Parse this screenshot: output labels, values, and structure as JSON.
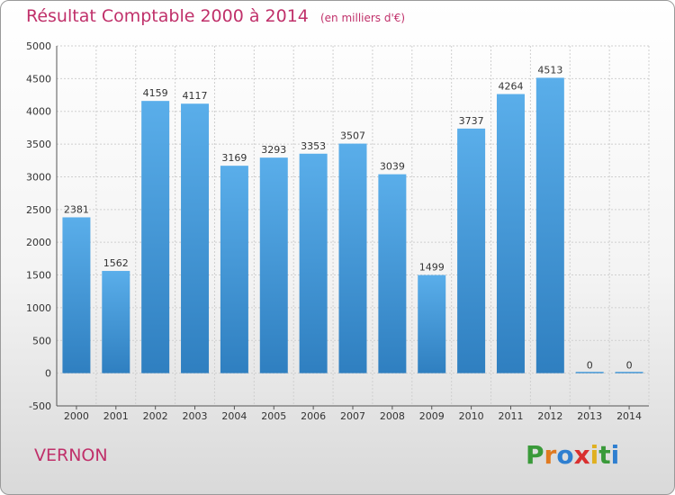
{
  "title": "Résultat Comptable 2000 à 2014",
  "subtitle": "(en milliers d'€)",
  "city": "VERNON",
  "brand": {
    "letters": [
      "P",
      "r",
      "o",
      "x",
      "i",
      "t",
      "i"
    ],
    "colors": [
      "#3a9a3a",
      "#e07a20",
      "#2f7fd0",
      "#d93030",
      "#e0b020",
      "#3a9a3a",
      "#2f7fd0"
    ]
  },
  "colors": {
    "bar": "#4aa0e0",
    "title": "#c0306a"
  },
  "chart_data": {
    "type": "bar",
    "title": "Résultat Comptable 2000 à 2014",
    "subtitle": "(en milliers d'€)",
    "categories": [
      "2000",
      "2001",
      "2002",
      "2003",
      "2004",
      "2005",
      "2006",
      "2007",
      "2008",
      "2009",
      "2010",
      "2011",
      "2012",
      "2013",
      "2014"
    ],
    "values": [
      2381,
      1562,
      4159,
      4117,
      3169,
      3293,
      3353,
      3507,
      3039,
      1499,
      3737,
      4264,
      4513,
      0,
      0
    ],
    "ylim": [
      -500,
      5000
    ],
    "yticks": [
      -500,
      0,
      500,
      1000,
      1500,
      2000,
      2500,
      3000,
      3500,
      4000,
      4500,
      5000
    ],
    "grid": true,
    "xlabel": "",
    "ylabel": ""
  }
}
